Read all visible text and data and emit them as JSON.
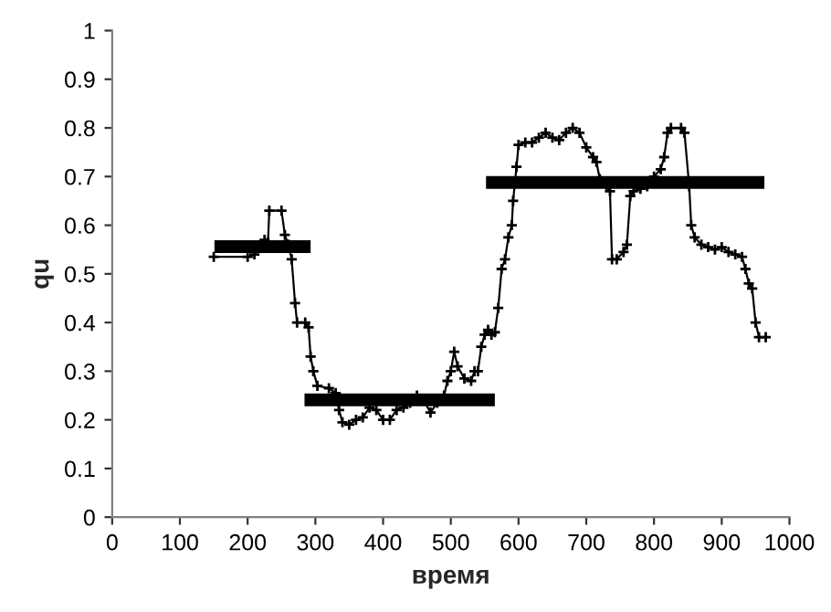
{
  "chart_data": {
    "type": "line",
    "xlabel": "время",
    "ylabel": "qu",
    "xlim": [
      0,
      1000
    ],
    "xticks": [
      0,
      100,
      200,
      300,
      400,
      500,
      600,
      700,
      800,
      900,
      1000
    ],
    "ylim": [
      0,
      1
    ],
    "yticks": [
      0,
      0.1,
      0.2,
      0.3,
      0.4,
      0.5,
      0.6,
      0.7,
      0.8,
      0.9,
      1
    ],
    "grid": false,
    "legend": false,
    "line_style": "solid",
    "series": [
      {
        "color": "#000000",
        "marker": "cross",
        "x": [
          150,
          200,
          210,
          220,
          225,
          230,
          232,
          250,
          255,
          260,
          265,
          270,
          273,
          285,
          290,
          293,
          297,
          303,
          320,
          330,
          335,
          340,
          350,
          360,
          370,
          380,
          390,
          400,
          410,
          420,
          430,
          440,
          450,
          460,
          470,
          480,
          490,
          495,
          500,
          505,
          510,
          520,
          530,
          535,
          540,
          545,
          550,
          555,
          560,
          565,
          570,
          575,
          580,
          585,
          590,
          592,
          597,
          600,
          610,
          620,
          630,
          640,
          650,
          660,
          670,
          680,
          690,
          700,
          710,
          715,
          720,
          730,
          735,
          738,
          745,
          755,
          760,
          765,
          770,
          780,
          790,
          800,
          810,
          815,
          820,
          825,
          840,
          845,
          852,
          855,
          860,
          870,
          880,
          890,
          900,
          910,
          920,
          930,
          935,
          940,
          945,
          950,
          955,
          965
        ],
        "values": [
          0.535,
          0.535,
          0.54,
          0.555,
          0.57,
          0.565,
          0.63,
          0.63,
          0.58,
          0.56,
          0.53,
          0.44,
          0.4,
          0.4,
          0.39,
          0.33,
          0.3,
          0.27,
          0.265,
          0.255,
          0.22,
          0.195,
          0.19,
          0.2,
          0.205,
          0.225,
          0.22,
          0.2,
          0.2,
          0.22,
          0.225,
          0.235,
          0.25,
          0.24,
          0.215,
          0.235,
          0.25,
          0.28,
          0.3,
          0.34,
          0.31,
          0.285,
          0.28,
          0.3,
          0.3,
          0.35,
          0.375,
          0.385,
          0.375,
          0.38,
          0.43,
          0.51,
          0.53,
          0.575,
          0.6,
          0.65,
          0.72,
          0.765,
          0.77,
          0.77,
          0.78,
          0.79,
          0.78,
          0.775,
          0.79,
          0.8,
          0.79,
          0.76,
          0.74,
          0.73,
          0.695,
          0.68,
          0.67,
          0.53,
          0.53,
          0.545,
          0.56,
          0.66,
          0.67,
          0.675,
          0.68,
          0.7,
          0.715,
          0.74,
          0.79,
          0.8,
          0.8,
          0.79,
          0.68,
          0.6,
          0.575,
          0.56,
          0.555,
          0.55,
          0.555,
          0.545,
          0.54,
          0.535,
          0.51,
          0.48,
          0.47,
          0.4,
          0.37,
          0.37
        ]
      },
      {
        "color": "#000000",
        "marker": "none",
        "x": [
          151,
          293
        ],
        "values": [
          0.556,
          0.556
        ]
      },
      {
        "color": "#000000",
        "marker": "none",
        "x": [
          284,
          565
        ],
        "values": [
          0.241,
          0.241
        ]
      },
      {
        "color": "#000000",
        "marker": "none",
        "x": [
          552,
          963
        ],
        "values": [
          0.688,
          0.688
        ]
      }
    ]
  }
}
